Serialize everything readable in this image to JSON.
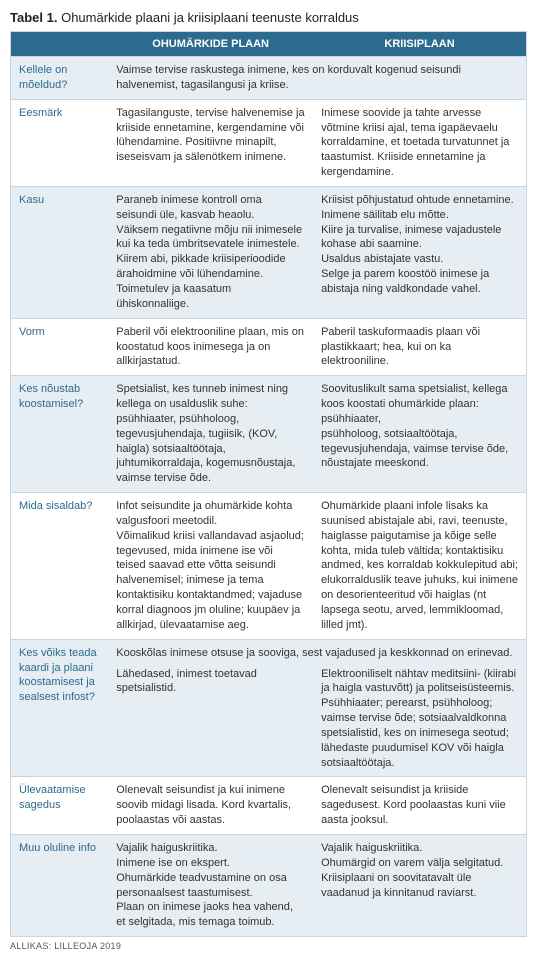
{
  "title_prefix": "Tabel 1.",
  "title_text": "Ohumärkide plaani ja kriisiplaani teenuste korraldus",
  "columns": {
    "col1": "OHUMÄRKIDE PLAAN",
    "col2": "KRIISIPLAAN"
  },
  "rows": {
    "r1_label": "Kellele on mõeldud?",
    "r1_merged": "Vaimse tervise raskustega inimene, kes on korduvalt kogenud seisundi halvenemist, tagasilangusi ja kriise.",
    "r2_label": "Eesmärk",
    "r2_c1": "Tagasilanguste, tervise halvenemise ja kriiside ennetamine, kergendamine või lühendamine. Positiivne minapilt, iseseisvam ja sälenötkem inimene.",
    "r2_c2": "Inimese soovide ja tahte arvesse võtmine kriisi ajal, tema igapäevaelu korraldamine, et toetada turvatunnet ja taastumist. Kriiside ennetamine ja kergendamine.",
    "r3_label": "Kasu",
    "r3_c1": "Paraneb inimese kontroll oma seisundi üle, kasvab heaolu.\nVäiksem negatiivne mõju nii inimesele kui ka teda ümbritsevatele inimestele. Kiirem abi, pikkade kriisiperioodide ärahoidmine või lühendamine.\nToimetulev ja kaasatum ühiskonnaliige.",
    "r3_c2": "Kriisist põhjustatud ohtude ennetamine. Inimene säilitab elu mõtte.\nKiire ja turvalise, inimese vajadustele kohase abi saamine.\nUsaldus abistajate vastu.\nSelge ja parem koostöö inimese ja abistaja ning valdkondade vahel.",
    "r4_label": "Vorm",
    "r4_c1": "Paberil või elektrooniline plaan, mis on koostatud koos inimesega ja on allkirjastatud.",
    "r4_c2": "Paberil taskuformaadis plaan või plastikkaart; hea, kui on ka elektrooniline.",
    "r5_label": "Kes nõustab koostamisel?",
    "r5_c1": "Spetsialist, kes tunneb inimest ning kellega on usalduslik suhe:\npsühhiaater, psühholoog, tegevusjuhendaja, tugiisik, (KOV, haigla) sotsiaaltöötaja, juhtumikorraldaja, kogemusnõustaja, vaimse tervise õde.",
    "r5_c2": "Soovituslikult sama spetsialist, kellega koos koostati ohumärkide plaan: psühhiaater,\npsühholoog, sotsiaaltöötaja, tegevusjuhendaja, vaimse tervise õde, nõustajate meeskond.",
    "r6_label": "Mida sisaldab?",
    "r6_c1": "Infot seisundite ja ohumärkide kohta valgusfoori meetodil.\nVõimalikud kriisi vallandavad asjaolud; tegevused, mida inimene ise või teised saavad ette võtta seisundi halvenemisel; inimese ja tema kontaktisiku kontaktandmed; vajaduse korral diagnoos jm oluline; kuupäev ja allkirjad, ülevaatamise aeg.",
    "r6_c2": "Ohumärkide plaani infole lisaks ka suunised abistajale abi, ravi, teenuste, haiglasse paigutamise ja kõige selle kohta, mida tuleb vältida; kontaktisiku andmed, kes korraldab kokkulepitud abi; elukorralduslik teave juhuks, kui inimene on desorienteeritud või haiglas (nt lapsega seotu, arved, lemmikloomad, lilled jmt).",
    "r7_label": "Kes võiks teada kaardi ja plaani koostamisest ja sealsest infost?",
    "r7_merged": "Kooskõlas inimese otsuse ja sooviga, sest vajadused ja keskkonnad on erinevad.",
    "r7b_c1": "Lähedased, inimest toetavad spetsialistid.",
    "r7b_c2": "Elektrooniliselt nähtav meditsiini- (kiirabi ja haigla vastuvõtt) ja politseisüsteemis.\nPsühhiaater; perearst, psühholoog; vaimse tervise õde; sotsiaalvaldkonna spetsialistid, kes on inimesega seotud; lähedaste puudumisel KOV või haigla sotsiaaltöötaja.",
    "r8_label": "Ülevaatamise sagedus",
    "r8_c1": "Olenevalt seisundist ja kui inimene soovib midagi lisada. Kord kvartalis, poolaastas või aastas.",
    "r8_c2": "Olenevalt seisundist ja kriiside sagedusest. Kord poolaastas kuni viie aasta jooksul.",
    "r9_label": "Muu oluline info",
    "r9_c1": "Vajalik haiguskriitika.\nInimene ise on ekspert.\nOhumärkide teadvustamine on osa personaalsest taastumisest.\nPlaan on inimese jaoks hea vahend, et selgitada, mis temaga toimub.",
    "r9_c2": "Vajalik haiguskriitika.\nOhumärgid on varem välja selgitatud.\nKriisiplaani on soovitatavalt üle vaadanud ja kinnitanud raviarst."
  },
  "source": "ALLIKAS: LILLEOJA 2019",
  "colors": {
    "header_bg": "#2c6b8e",
    "row_odd": "#e6eef4",
    "row_even": "#ffffff",
    "border": "#c9d6e2",
    "label_text": "#2c6b8e"
  }
}
